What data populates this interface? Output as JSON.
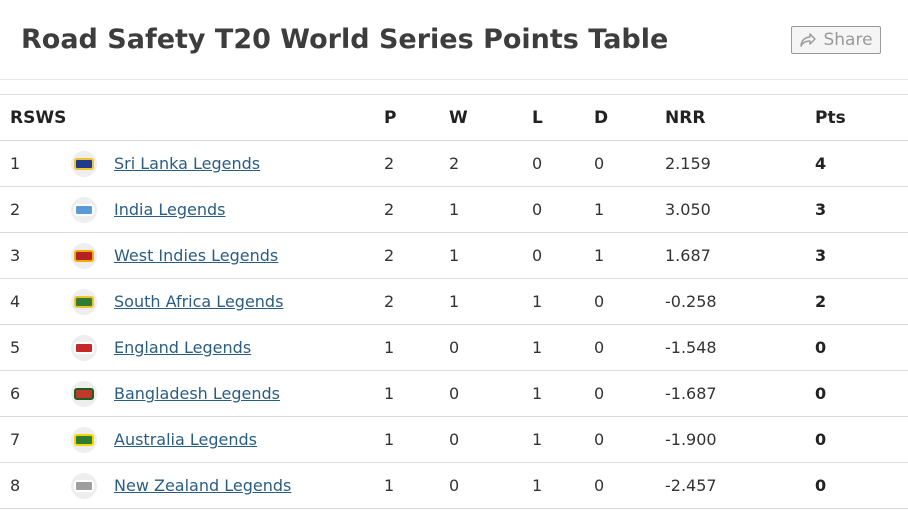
{
  "header": {
    "title": "Road Safety T20 World Series Points Table",
    "share_label": "Share"
  },
  "table": {
    "columns": {
      "rank": "RSWS",
      "p": "P",
      "w": "W",
      "l": "L",
      "d": "D",
      "nrr": "NRR",
      "pts": "Pts"
    },
    "rows": [
      {
        "rank": "1",
        "team": "Sri Lanka Legends",
        "p": "2",
        "w": "2",
        "l": "0",
        "d": "0",
        "nrr": "2.159",
        "pts": "4",
        "logo_color": "#1e3a8a",
        "logo_accent": "#f2c230"
      },
      {
        "rank": "2",
        "team": "India Legends",
        "p": "2",
        "w": "1",
        "l": "0",
        "d": "1",
        "nrr": "3.050",
        "pts": "3",
        "logo_color": "#5b9bd5",
        "logo_accent": "#ffffff"
      },
      {
        "rank": "3",
        "team": "West Indies Legends",
        "p": "2",
        "w": "1",
        "l": "0",
        "d": "1",
        "nrr": "1.687",
        "pts": "3",
        "logo_color": "#b22222",
        "logo_accent": "#f2a900"
      },
      {
        "rank": "4",
        "team": "South Africa Legends",
        "p": "2",
        "w": "1",
        "l": "1",
        "d": "0",
        "nrr": "-0.258",
        "pts": "2",
        "logo_color": "#2e7d32",
        "logo_accent": "#f2c230"
      },
      {
        "rank": "5",
        "team": "England Legends",
        "p": "1",
        "w": "0",
        "l": "1",
        "d": "0",
        "nrr": "-1.548",
        "pts": "0",
        "logo_color": "#c62828",
        "logo_accent": "#ffffff"
      },
      {
        "rank": "6",
        "team": "Bangladesh Legends",
        "p": "1",
        "w": "0",
        "l": "1",
        "d": "0",
        "nrr": "-1.687",
        "pts": "0",
        "logo_color": "#c0392b",
        "logo_accent": "#1b5e20"
      },
      {
        "rank": "7",
        "team": "Australia Legends",
        "p": "1",
        "w": "0",
        "l": "1",
        "d": "0",
        "nrr": "-1.900",
        "pts": "0",
        "logo_color": "#2e7d32",
        "logo_accent": "#f2d600"
      },
      {
        "rank": "8",
        "team": "New Zealand Legends",
        "p": "1",
        "w": "0",
        "l": "1",
        "d": "0",
        "nrr": "-2.457",
        "pts": "0",
        "logo_color": "#9e9e9e",
        "logo_accent": "#ffffff"
      }
    ]
  },
  "icons": {
    "share": "share-arrow-icon"
  },
  "colors": {
    "link": "#2a5d84",
    "title": "#3d3d3d",
    "border": "#dcdcdc"
  }
}
